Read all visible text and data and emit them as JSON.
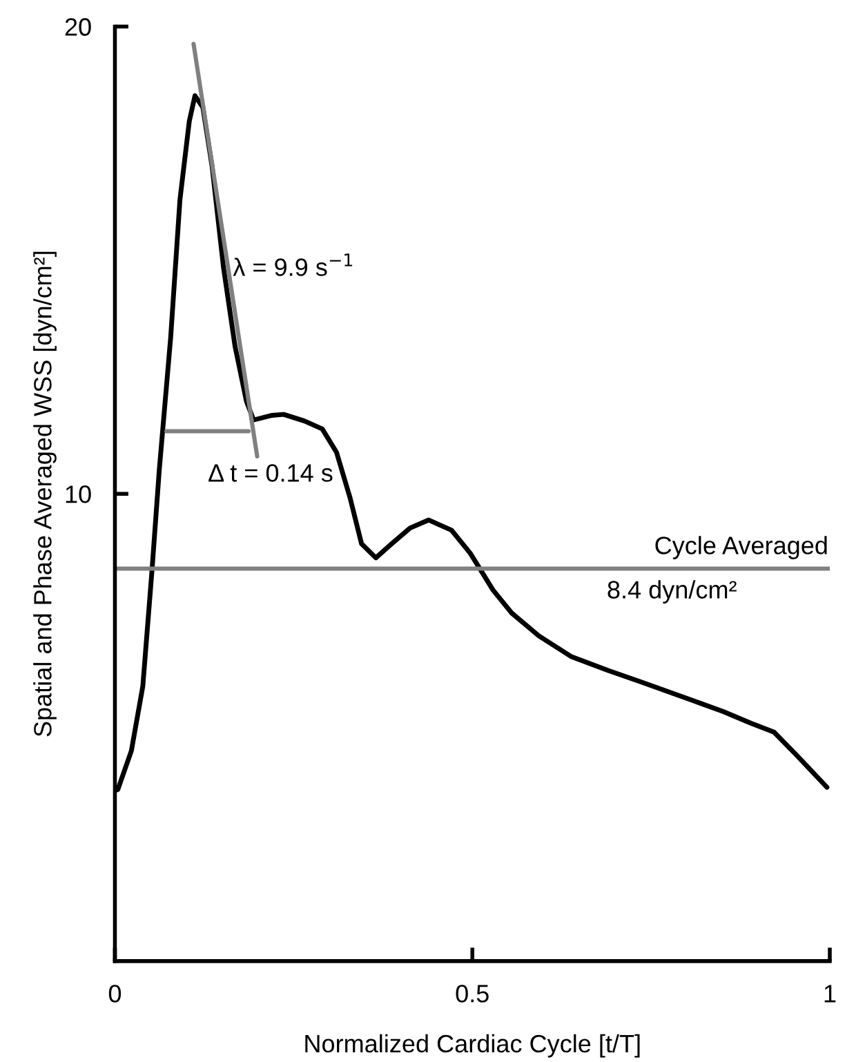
{
  "chart_data": {
    "type": "line",
    "xlabel": "Normalized Cardiac Cycle [t/T]",
    "ylabel": "Spatial and Phase Averaged WSS [dyn/cm²]",
    "xlim": [
      0,
      1
    ],
    "ylim": [
      0,
      20
    ],
    "xticks": [
      0,
      0.5,
      1
    ],
    "yticks": [
      10,
      20
    ],
    "grid": false,
    "legend": false,
    "marker": "none",
    "line_style": "solid",
    "series": [
      {
        "color": "#000000",
        "x": [
          0,
          0.004,
          0.023,
          0.039,
          0.052,
          0.062,
          0.078,
          0.091,
          0.104,
          0.112,
          0.123,
          0.136,
          0.152,
          0.168,
          0.184,
          0.194,
          0.22,
          0.236,
          0.265,
          0.29,
          0.31,
          0.329,
          0.345,
          0.365,
          0.387,
          0.413,
          0.439,
          0.471,
          0.497,
          0.529,
          0.555,
          0.593,
          0.638,
          0.69,
          0.735,
          0.799,
          0.851,
          0.89,
          0.922,
          0.954,
          0.996
        ],
        "values": [
          3.65,
          3.67,
          4.5,
          5.88,
          8.39,
          10.5,
          13.35,
          16.3,
          17.97,
          18.52,
          18.27,
          17.0,
          14.83,
          13.16,
          11.98,
          11.58,
          11.68,
          11.7,
          11.56,
          11.39,
          10.89,
          9.91,
          8.93,
          8.63,
          8.93,
          9.27,
          9.44,
          9.22,
          8.73,
          7.94,
          7.45,
          6.96,
          6.52,
          6.22,
          5.98,
          5.63,
          5.34,
          5.09,
          4.9,
          4.4,
          3.72
        ]
      },
      {
        "color": "#808080",
        "x": [
          0.11,
          0.199
        ],
        "values": [
          19.63,
          10.8
        ]
      },
      {
        "color": "#808080",
        "x": [
          0.072,
          0.187
        ],
        "values": [
          11.34,
          11.34
        ]
      }
    ],
    "ref_lines": [
      {
        "axis": "y",
        "value": 8.4,
        "label": "Cycle Averaged\n8.4 dyn/cm²",
        "color": "#808080"
      }
    ],
    "annotations": [
      {
        "text": "λ = 9.9 s$^{−1}$",
        "x": 0.165,
        "y": 14.8
      },
      "Δ t = 0.14 s"
    ]
  }
}
